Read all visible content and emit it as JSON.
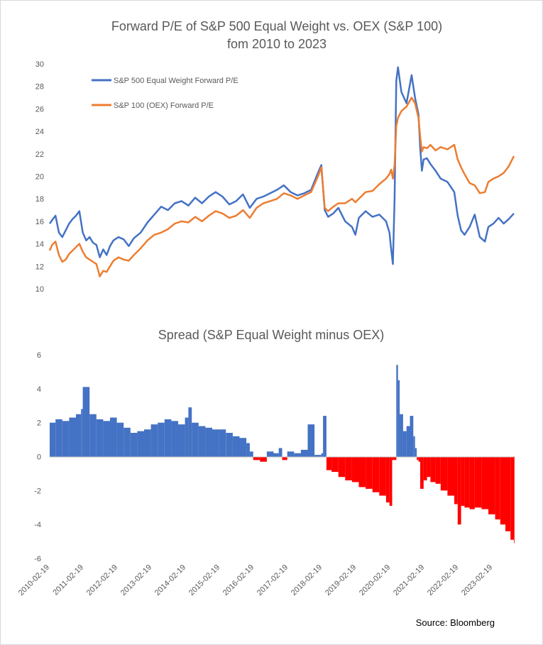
{
  "chart_data": [
    {
      "type": "line",
      "title": "Forward P/E of S&P 500 Equal Weight vs. OEX (S&P 100)",
      "subtitle": "fom 2010 to 2023",
      "ylim": [
        10,
        30
      ],
      "yticks": [
        10,
        12,
        14,
        16,
        18,
        20,
        22,
        24,
        26,
        28,
        30
      ],
      "xlim": [
        2010.13,
        2023.75
      ],
      "grid": false,
      "legend_position": "top-left",
      "series": [
        {
          "name": "S&P 500 Equal Weight Forward P/E",
          "color": "#4472c4",
          "x": [
            2010.13,
            2010.2,
            2010.3,
            2010.4,
            2010.5,
            2010.6,
            2010.7,
            2010.8,
            2010.9,
            2011.0,
            2011.1,
            2011.2,
            2011.3,
            2011.4,
            2011.5,
            2011.6,
            2011.7,
            2011.8,
            2011.9,
            2012.0,
            2012.15,
            2012.3,
            2012.45,
            2012.6,
            2012.8,
            2013.0,
            2013.2,
            2013.4,
            2013.6,
            2013.8,
            2014.0,
            2014.2,
            2014.4,
            2014.6,
            2014.8,
            2015.0,
            2015.2,
            2015.4,
            2015.6,
            2015.8,
            2016.0,
            2016.2,
            2016.4,
            2016.6,
            2016.8,
            2017.0,
            2017.2,
            2017.4,
            2017.6,
            2017.8,
            2018.0,
            2018.1,
            2018.2,
            2018.3,
            2018.45,
            2018.6,
            2018.8,
            2019.0,
            2019.1,
            2019.2,
            2019.4,
            2019.6,
            2019.8,
            2020.0,
            2020.1,
            2020.15,
            2020.2,
            2020.25,
            2020.3,
            2020.35,
            2020.45,
            2020.6,
            2020.75,
            2020.85,
            2020.95,
            2021.0,
            2021.05,
            2021.1,
            2021.2,
            2021.3,
            2021.45,
            2021.6,
            2021.8,
            2022.0,
            2022.1,
            2022.2,
            2022.3,
            2022.45,
            2022.6,
            2022.75,
            2022.9,
            2023.0,
            2023.15,
            2023.3,
            2023.45,
            2023.6,
            2023.75
          ],
          "y": [
            15.8,
            16.1,
            16.5,
            15.0,
            14.6,
            15.2,
            15.8,
            16.2,
            16.5,
            16.9,
            15.0,
            14.3,
            14.6,
            14.1,
            13.9,
            12.8,
            13.5,
            13.0,
            13.8,
            14.3,
            14.6,
            14.4,
            13.8,
            14.5,
            15.0,
            15.9,
            16.6,
            17.3,
            17.0,
            17.6,
            17.8,
            17.4,
            18.1,
            17.6,
            18.2,
            18.6,
            18.2,
            17.5,
            17.8,
            18.4,
            17.2,
            18.0,
            18.2,
            18.5,
            18.8,
            19.2,
            18.6,
            18.3,
            18.5,
            18.8,
            20.3,
            21.0,
            17.0,
            16.4,
            16.7,
            17.2,
            16.0,
            15.5,
            14.8,
            16.3,
            16.9,
            16.4,
            16.6,
            16.0,
            15.0,
            13.5,
            12.2,
            18.0,
            28.5,
            29.7,
            27.5,
            26.5,
            29.0,
            27.0,
            25.5,
            22.5,
            20.5,
            21.5,
            21.6,
            21.1,
            20.5,
            19.8,
            19.5,
            18.6,
            16.5,
            15.2,
            14.8,
            15.5,
            16.6,
            14.6,
            14.2,
            15.5,
            15.8,
            16.3,
            15.8,
            16.2,
            16.7
          ]
        },
        {
          "name": "S&P 100 (OEX) Forward P/E",
          "color": "#ed7d31",
          "x": [
            2010.13,
            2010.2,
            2010.3,
            2010.4,
            2010.5,
            2010.6,
            2010.7,
            2010.8,
            2010.9,
            2011.0,
            2011.1,
            2011.2,
            2011.3,
            2011.4,
            2011.5,
            2011.6,
            2011.7,
            2011.8,
            2011.9,
            2012.0,
            2012.15,
            2012.3,
            2012.45,
            2012.6,
            2012.8,
            2013.0,
            2013.2,
            2013.4,
            2013.6,
            2013.8,
            2014.0,
            2014.2,
            2014.4,
            2014.6,
            2014.8,
            2015.0,
            2015.2,
            2015.4,
            2015.6,
            2015.8,
            2016.0,
            2016.2,
            2016.4,
            2016.6,
            2016.8,
            2017.0,
            2017.2,
            2017.4,
            2017.6,
            2017.8,
            2018.0,
            2018.1,
            2018.2,
            2018.3,
            2018.45,
            2018.6,
            2018.8,
            2019.0,
            2019.1,
            2019.2,
            2019.4,
            2019.6,
            2019.8,
            2020.0,
            2020.1,
            2020.15,
            2020.2,
            2020.25,
            2020.3,
            2020.35,
            2020.45,
            2020.6,
            2020.75,
            2020.85,
            2020.95,
            2021.0,
            2021.05,
            2021.1,
            2021.2,
            2021.3,
            2021.45,
            2021.6,
            2021.8,
            2022.0,
            2022.1,
            2022.2,
            2022.3,
            2022.45,
            2022.6,
            2022.75,
            2022.9,
            2023.0,
            2023.15,
            2023.3,
            2023.45,
            2023.6,
            2023.75
          ],
          "y": [
            13.4,
            13.9,
            14.2,
            13.0,
            12.4,
            12.6,
            13.1,
            13.4,
            13.7,
            14.0,
            13.3,
            12.8,
            12.6,
            12.4,
            12.2,
            11.1,
            11.6,
            11.5,
            12.0,
            12.5,
            12.8,
            12.6,
            12.5,
            13.0,
            13.6,
            14.3,
            14.8,
            15.0,
            15.3,
            15.8,
            16.0,
            15.9,
            16.4,
            16.0,
            16.5,
            16.9,
            16.7,
            16.3,
            16.5,
            17.0,
            16.3,
            17.2,
            17.6,
            17.8,
            18.0,
            18.5,
            18.3,
            18.0,
            18.3,
            18.6,
            20.0,
            20.8,
            17.2,
            16.9,
            17.3,
            17.6,
            17.6,
            18.0,
            17.7,
            18.0,
            18.6,
            18.7,
            19.3,
            19.8,
            20.2,
            20.6,
            19.8,
            21.0,
            24.5,
            25.2,
            25.8,
            26.2,
            27.0,
            26.5,
            25.2,
            23.5,
            22.2,
            22.6,
            22.5,
            22.8,
            22.3,
            22.6,
            22.4,
            22.8,
            21.5,
            20.8,
            20.2,
            19.4,
            19.2,
            18.5,
            18.6,
            19.5,
            19.8,
            20.0,
            20.3,
            20.9,
            21.8
          ]
        }
      ]
    },
    {
      "type": "bar",
      "title": "Spread (S&P Equal Weight minus OEX)",
      "ylim": [
        -6,
        6
      ],
      "yticks": [
        -6,
        -4,
        -2,
        0,
        2,
        4,
        6
      ],
      "xlim": [
        2010.13,
        2023.75
      ],
      "grid": false,
      "positive_color": "#4472c4",
      "negative_color": "#ff0000",
      "x_tick_labels": [
        "2010-02-19",
        "2011-02-19",
        "2012-02-19",
        "2013-02-19",
        "2014-02-19",
        "2015-02-19",
        "2016-02-19",
        "2017-02-19",
        "2018-02-19",
        "2019-02-19",
        "2020-02-19",
        "2021-02-19",
        "2022-02-19",
        "2023-02-19"
      ],
      "x_tick_values": [
        2010.13,
        2011.13,
        2012.13,
        2013.13,
        2014.13,
        2015.13,
        2016.13,
        2017.13,
        2018.13,
        2019.13,
        2020.13,
        2021.13,
        2022.13,
        2023.13
      ],
      "x": [
        2010.13,
        2010.3,
        2010.5,
        2010.7,
        2010.9,
        2011.05,
        2011.1,
        2011.3,
        2011.5,
        2011.7,
        2011.9,
        2012.1,
        2012.3,
        2012.5,
        2012.7,
        2012.9,
        2013.1,
        2013.3,
        2013.5,
        2013.7,
        2013.9,
        2014.1,
        2014.2,
        2014.3,
        2014.5,
        2014.7,
        2014.9,
        2015.1,
        2015.3,
        2015.5,
        2015.7,
        2015.9,
        2016.0,
        2016.1,
        2016.3,
        2016.5,
        2016.7,
        2016.85,
        2016.95,
        2017.1,
        2017.3,
        2017.5,
        2017.7,
        2017.9,
        2018.1,
        2018.15,
        2018.25,
        2018.4,
        2018.6,
        2018.8,
        2019.0,
        2019.2,
        2019.4,
        2019.6,
        2019.8,
        2020.0,
        2020.1,
        2020.18,
        2020.3,
        2020.35,
        2020.4,
        2020.5,
        2020.6,
        2020.7,
        2020.8,
        2020.85,
        2020.9,
        2020.95,
        2021.0,
        2021.1,
        2021.2,
        2021.3,
        2021.45,
        2021.6,
        2021.8,
        2022.0,
        2022.1,
        2022.2,
        2022.3,
        2022.45,
        2022.6,
        2022.8,
        2023.0,
        2023.2,
        2023.35,
        2023.5,
        2023.65,
        2023.75
      ],
      "values": [
        2.0,
        2.2,
        2.1,
        2.3,
        2.5,
        2.8,
        4.1,
        2.5,
        2.2,
        2.1,
        2.3,
        2.0,
        1.7,
        1.4,
        1.5,
        1.6,
        1.9,
        2.0,
        2.2,
        2.1,
        1.9,
        2.3,
        2.9,
        2.0,
        1.8,
        1.7,
        1.6,
        1.6,
        1.4,
        1.2,
        1.1,
        0.8,
        0.3,
        -0.2,
        -0.3,
        0.3,
        0.2,
        0.5,
        -0.2,
        0.3,
        0.2,
        0.4,
        1.9,
        0.1,
        0.2,
        2.4,
        -0.8,
        -0.9,
        -1.2,
        -1.4,
        -1.5,
        -1.8,
        -1.9,
        -2.1,
        -2.3,
        -2.7,
        -2.9,
        -0.2,
        5.4,
        4.5,
        2.5,
        1.5,
        1.8,
        2.4,
        1.2,
        0.5,
        -0.2,
        -0.3,
        -1.9,
        -1.4,
        -1.2,
        -1.5,
        -1.6,
        -2.0,
        -2.3,
        -2.8,
        -4.0,
        -2.9,
        -3.0,
        -3.1,
        -3.0,
        -3.1,
        -3.4,
        -3.7,
        -4.0,
        -4.4,
        -4.9,
        -5.1
      ]
    }
  ],
  "source": "Source: Bloomberg"
}
